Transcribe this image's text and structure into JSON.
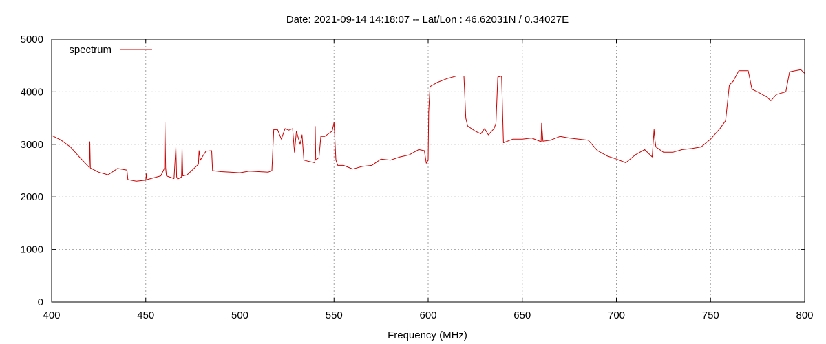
{
  "chart_data": {
    "type": "line",
    "title": "Date: 2021-09-14 14:18:07  --  Lat/Lon : 46.62031N / 0.34027E",
    "xlabel": "Frequency (MHz)",
    "ylabel": "",
    "xlim": [
      400,
      800
    ],
    "ylim": [
      0,
      5000
    ],
    "xticks": [
      400,
      450,
      500,
      550,
      600,
      650,
      700,
      750,
      800
    ],
    "yticks": [
      0,
      1000,
      2000,
      3000,
      4000,
      5000
    ],
    "grid": true,
    "legend_position": "top-left",
    "series": [
      {
        "name": "spectrum",
        "color": "#cc0000",
        "x": [
          400,
          405,
          410,
          415,
          420,
          420.3,
          420.6,
          425,
          430,
          435,
          440,
          440.5,
          445,
          450,
          450.3,
          450.6,
          455,
          458,
          460,
          460.2,
          460.6,
          461,
          465,
          466,
          466.4,
          467,
          469,
          469.3,
          469.7,
          472,
          475,
          478,
          478.3,
          479,
          480,
          482,
          485,
          485.5,
          490,
          495,
          500,
          505,
          510,
          515,
          517,
          518,
          520,
          522,
          524,
          526,
          528,
          529,
          530,
          532,
          533,
          534,
          536,
          539.8,
          540,
          540.3,
          542,
          543,
          545,
          547,
          549,
          550,
          551,
          552,
          555,
          560,
          565,
          570,
          575,
          580,
          585,
          590,
          595,
          598,
          599,
          600,
          600.3,
          601,
          605,
          610,
          615,
          619,
          620,
          621,
          625,
          628,
          630,
          632,
          635,
          636,
          637,
          639,
          640,
          645,
          650,
          655,
          660,
          660.3,
          661,
          665,
          670,
          675,
          680,
          685,
          690,
          695,
          700,
          705,
          710,
          715,
          719,
          720,
          720.4,
          721,
          725,
          730,
          735,
          740,
          745,
          750,
          755,
          758,
          760,
          762,
          765,
          770,
          772,
          775,
          780,
          782,
          785,
          790,
          792,
          795,
          798,
          800
        ],
        "y": [
          3170,
          3080,
          2950,
          2750,
          2560,
          3050,
          2550,
          2470,
          2420,
          2540,
          2510,
          2330,
          2300,
          2320,
          2440,
          2330,
          2370,
          2400,
          2550,
          3420,
          2550,
          2400,
          2350,
          2950,
          2380,
          2340,
          2380,
          2920,
          2400,
          2420,
          2520,
          2620,
          2880,
          2700,
          2760,
          2870,
          2880,
          2500,
          2480,
          2470,
          2460,
          2490,
          2480,
          2470,
          2500,
          3280,
          3280,
          3100,
          3300,
          3270,
          3300,
          2850,
          3250,
          3000,
          3180,
          2700,
          2680,
          2650,
          3340,
          2700,
          2750,
          3150,
          3150,
          3200,
          3250,
          3420,
          2700,
          2600,
          2600,
          2530,
          2580,
          2600,
          2720,
          2700,
          2760,
          2800,
          2900,
          2880,
          2640,
          2700,
          3610,
          4100,
          4180,
          4250,
          4300,
          4300,
          3500,
          3350,
          3250,
          3200,
          3300,
          3180,
          3300,
          3400,
          4280,
          4300,
          3030,
          3100,
          3100,
          3120,
          3050,
          3400,
          3060,
          3080,
          3150,
          3120,
          3100,
          3080,
          2880,
          2780,
          2720,
          2650,
          2800,
          2900,
          2760,
          3280,
          3100,
          2950,
          2850,
          2850,
          2900,
          2920,
          2950,
          3100,
          3300,
          3450,
          4130,
          4200,
          4400,
          4400,
          4050,
          4000,
          3900,
          3830,
          3950,
          4000,
          4380,
          4400,
          4420,
          4350
        ]
      }
    ]
  }
}
